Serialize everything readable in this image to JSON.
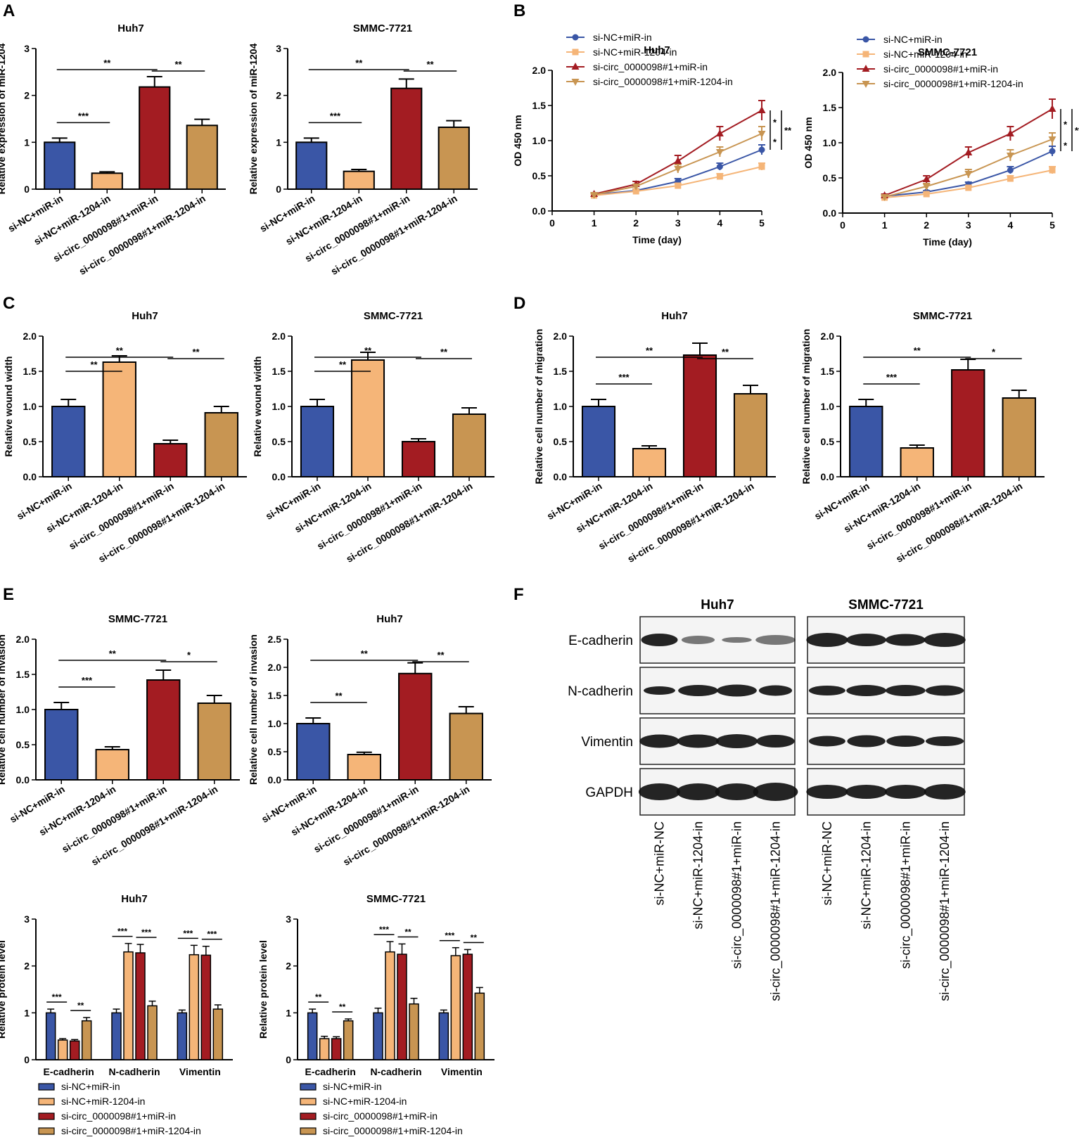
{
  "colors": {
    "blue": "#3a56a6",
    "peach": "#f5b578",
    "red": "#a31c22",
    "tan": "#c89552",
    "black": "#000000"
  },
  "panel_letters": [
    "A",
    "B",
    "C",
    "D",
    "E",
    "F"
  ],
  "chart_data": [
    {
      "panel": "A",
      "type": "bar",
      "title": "Huh7",
      "ylabel": "Relative expression of miR-1204",
      "ylim": [
        0,
        3
      ],
      "yticks": [
        0,
        1,
        2,
        3
      ],
      "categories": [
        "si-NC+miR-in",
        "si-NC+miR-1204-in",
        "si-circ_0000098#1+miR-in",
        "si-circ_0000098#1+miR-1204-in"
      ],
      "values": [
        1.0,
        0.34,
        2.18,
        1.36
      ],
      "errors": [
        0.09,
        0.03,
        0.22,
        0.13
      ],
      "significance": [
        {
          "from": 0,
          "to": 1,
          "label": "***"
        },
        {
          "from": 0,
          "to": 2,
          "label": "**"
        },
        {
          "from": 2,
          "to": 3,
          "label": "**"
        }
      ]
    },
    {
      "panel": "A",
      "type": "bar",
      "title": "SMMC-7721",
      "ylabel": "Relative expression of miR-1204",
      "ylim": [
        0,
        3
      ],
      "yticks": [
        0,
        1,
        2,
        3
      ],
      "categories": [
        "si-NC+miR-in",
        "si-NC+miR-1204-in",
        "si-circ_0000098#1+miR-in",
        "si-circ_0000098#1+miR-1204-in"
      ],
      "values": [
        1.0,
        0.38,
        2.15,
        1.32
      ],
      "errors": [
        0.09,
        0.04,
        0.2,
        0.14
      ],
      "significance": [
        {
          "from": 0,
          "to": 1,
          "label": "***"
        },
        {
          "from": 0,
          "to": 2,
          "label": "**"
        },
        {
          "from": 2,
          "to": 3,
          "label": "**"
        }
      ]
    },
    {
      "panel": "B",
      "type": "line",
      "title": "Huh7",
      "xlabel": "Time (day)",
      "ylabel": "OD 450 nm",
      "xlim": [
        0,
        5
      ],
      "ylim": [
        0,
        2.0
      ],
      "xticks": [
        0,
        1,
        2,
        3,
        4,
        5
      ],
      "yticks": [
        0.0,
        0.5,
        1.0,
        1.5,
        2.0
      ],
      "x": [
        1,
        2,
        3,
        4,
        5
      ],
      "series": [
        {
          "name": "si-NC+miR-in",
          "values": [
            0.23,
            0.29,
            0.42,
            0.63,
            0.87
          ],
          "errors": [
            0.02,
            0.02,
            0.04,
            0.05,
            0.07
          ]
        },
        {
          "name": "si-NC+miR-1204-in",
          "values": [
            0.22,
            0.28,
            0.36,
            0.49,
            0.63
          ],
          "errors": [
            0.02,
            0.02,
            0.03,
            0.04,
            0.05
          ]
        },
        {
          "name": "si-circ_0000098#1+miR-in",
          "values": [
            0.24,
            0.38,
            0.71,
            1.1,
            1.43
          ],
          "errors": [
            0.02,
            0.04,
            0.08,
            0.1,
            0.14
          ]
        },
        {
          "name": "si-circ_0000098#1+miR-1204-in",
          "values": [
            0.23,
            0.35,
            0.6,
            0.84,
            1.1
          ],
          "errors": [
            0.02,
            0.03,
            0.06,
            0.07,
            0.1
          ]
        }
      ],
      "significance": [
        "*",
        "*",
        "**"
      ]
    },
    {
      "panel": "B",
      "type": "line",
      "title": "SMMC-7721",
      "xlabel": "Time (day)",
      "ylabel": "OD 450 nm",
      "xlim": [
        0,
        5
      ],
      "ylim": [
        0,
        2.0
      ],
      "xticks": [
        0,
        1,
        2,
        3,
        4,
        5
      ],
      "yticks": [
        0.0,
        0.5,
        1.0,
        1.5,
        2.0
      ],
      "x": [
        1,
        2,
        3,
        4,
        5
      ],
      "series": [
        {
          "name": "si-NC+miR-in",
          "values": [
            0.24,
            0.3,
            0.41,
            0.61,
            0.88
          ],
          "errors": [
            0.02,
            0.02,
            0.03,
            0.05,
            0.07
          ]
        },
        {
          "name": "si-NC+miR-1204-in",
          "values": [
            0.22,
            0.27,
            0.36,
            0.49,
            0.61
          ],
          "errors": [
            0.02,
            0.02,
            0.03,
            0.04,
            0.05
          ]
        },
        {
          "name": "si-circ_0000098#1+miR-in",
          "values": [
            0.25,
            0.48,
            0.86,
            1.13,
            1.48
          ],
          "errors": [
            0.02,
            0.05,
            0.08,
            0.1,
            0.14
          ]
        },
        {
          "name": "si-circ_0000098#1+miR-1204-in",
          "values": [
            0.23,
            0.38,
            0.56,
            0.82,
            1.05
          ],
          "errors": [
            0.02,
            0.04,
            0.06,
            0.08,
            0.09
          ]
        }
      ],
      "significance": [
        "*",
        "*",
        "**"
      ]
    },
    {
      "panel": "C",
      "type": "bar",
      "title": "Huh7",
      "ylabel": "Relative wound width",
      "ylim": [
        0,
        2.0
      ],
      "yticks": [
        0.0,
        0.5,
        1.0,
        1.5,
        2.0
      ],
      "categories": [
        "si-NC+miR-in",
        "si-NC+miR-1204-in",
        "si-circ_0000098#1+miR-in",
        "si-circ_0000098#1+miR-1204-in"
      ],
      "values": [
        1.0,
        1.63,
        0.47,
        0.91
      ],
      "errors": [
        0.1,
        0.09,
        0.05,
        0.09
      ],
      "significance": [
        {
          "from": 0,
          "to": 1,
          "label": "**"
        },
        {
          "from": 0,
          "to": 2,
          "label": "**"
        },
        {
          "from": 2,
          "to": 3,
          "label": "**"
        }
      ]
    },
    {
      "panel": "C",
      "type": "bar",
      "title": "SMMC-7721",
      "ylabel": "Relative wound width",
      "ylim": [
        0,
        2.0
      ],
      "yticks": [
        0.0,
        0.5,
        1.0,
        1.5,
        2.0
      ],
      "categories": [
        "si-NC+miR-in",
        "si-NC+miR-1204-in",
        "si-circ_0000098#1+miR-in",
        "si-circ_0000098#1+miR-1204-in"
      ],
      "values": [
        1.0,
        1.66,
        0.5,
        0.89
      ],
      "errors": [
        0.1,
        0.11,
        0.04,
        0.09
      ],
      "significance": [
        {
          "from": 0,
          "to": 1,
          "label": "**"
        },
        {
          "from": 0,
          "to": 2,
          "label": "**"
        },
        {
          "from": 2,
          "to": 3,
          "label": "**"
        }
      ]
    },
    {
      "panel": "D",
      "type": "bar",
      "title": "Huh7",
      "ylabel": "Relative cell number of migration",
      "ylim": [
        0,
        2.0
      ],
      "yticks": [
        0.0,
        0.5,
        1.0,
        1.5,
        2.0
      ],
      "categories": [
        "si-NC+miR-in",
        "si-NC+miR-1204-in",
        "si-circ_0000098#1+miR-in",
        "si-circ_0000098#1+miR-1204-in"
      ],
      "values": [
        1.0,
        0.4,
        1.73,
        1.18
      ],
      "errors": [
        0.1,
        0.04,
        0.17,
        0.12
      ],
      "significance": [
        {
          "from": 0,
          "to": 1,
          "label": "***"
        },
        {
          "from": 0,
          "to": 2,
          "label": "**"
        },
        {
          "from": 2,
          "to": 3,
          "label": "**"
        }
      ]
    },
    {
      "panel": "D",
      "type": "bar",
      "title": "SMMC-7721",
      "ylabel": "Relative cell number of migration",
      "ylim": [
        0,
        2.0
      ],
      "yticks": [
        0.0,
        0.5,
        1.0,
        1.5,
        2.0
      ],
      "categories": [
        "si-NC+miR-in",
        "si-NC+miR-1204-in",
        "si-circ_0000098#1+miR-in",
        "si-circ_0000098#1+miR-1204-in"
      ],
      "values": [
        1.0,
        0.41,
        1.52,
        1.12
      ],
      "errors": [
        0.1,
        0.04,
        0.15,
        0.11
      ],
      "significance": [
        {
          "from": 0,
          "to": 1,
          "label": "***"
        },
        {
          "from": 0,
          "to": 2,
          "label": "**"
        },
        {
          "from": 2,
          "to": 3,
          "label": "*"
        }
      ]
    },
    {
      "panel": "E",
      "type": "bar",
      "title": "SMMC-7721",
      "ylabel": "Relative cell number of invasion",
      "ylim": [
        0,
        2.0
      ],
      "yticks": [
        0.0,
        0.5,
        1.0,
        1.5,
        2.0
      ],
      "categories": [
        "si-NC+miR-in",
        "si-NC+miR-1204-in",
        "si-circ_0000098#1+miR-in",
        "si-circ_0000098#1+miR-1204-in"
      ],
      "values": [
        1.0,
        0.43,
        1.42,
        1.09
      ],
      "errors": [
        0.1,
        0.04,
        0.14,
        0.11
      ],
      "significance": [
        {
          "from": 0,
          "to": 1,
          "label": "***"
        },
        {
          "from": 0,
          "to": 2,
          "label": "**"
        },
        {
          "from": 2,
          "to": 3,
          "label": "*"
        }
      ]
    },
    {
      "panel": "E",
      "type": "bar",
      "title": "Huh7",
      "ylabel": "Relative cell number of invasion",
      "ylim": [
        0,
        2.5
      ],
      "yticks": [
        0.0,
        0.5,
        1.0,
        1.5,
        2.0,
        2.5
      ],
      "categories": [
        "si-NC+miR-in",
        "si-NC+miR-1204-in",
        "si-circ_0000098#1+miR-in",
        "si-circ_0000098#1+miR-1204-in"
      ],
      "values": [
        1.0,
        0.45,
        1.89,
        1.18
      ],
      "errors": [
        0.1,
        0.04,
        0.19,
        0.12
      ],
      "significance": [
        {
          "from": 0,
          "to": 1,
          "label": "**"
        },
        {
          "from": 0,
          "to": 2,
          "label": "**"
        },
        {
          "from": 2,
          "to": 3,
          "label": "**"
        }
      ]
    },
    {
      "panel": "F",
      "type": "bar",
      "title": "Huh7",
      "ylabel": "Relative protein level",
      "ylim": [
        0,
        3
      ],
      "yticks": [
        0,
        1,
        2,
        3
      ],
      "categories": [
        "E-cadherin",
        "N-cadherin",
        "Vimentin"
      ],
      "series": [
        {
          "name": "si-NC+miR-in",
          "values": [
            1.0,
            1.0,
            1.0
          ],
          "errors": [
            0.08,
            0.08,
            0.06
          ]
        },
        {
          "name": "si-NC+miR-1204-in",
          "values": [
            0.42,
            2.3,
            2.24
          ],
          "errors": [
            0.03,
            0.18,
            0.2
          ]
        },
        {
          "name": "si-circ_0000098#1+miR-in",
          "values": [
            0.4,
            2.28,
            2.23
          ],
          "errors": [
            0.03,
            0.18,
            0.19
          ]
        },
        {
          "name": "si-circ_0000098#1+miR-1204-in",
          "values": [
            0.83,
            1.15,
            1.08
          ],
          "errors": [
            0.07,
            0.1,
            0.09
          ]
        }
      ],
      "significance": [
        "***",
        "**",
        "***",
        "***",
        "***",
        "***"
      ]
    },
    {
      "panel": "F",
      "type": "bar",
      "title": "SMMC-7721",
      "ylabel": "Relative protein level",
      "ylim": [
        0,
        3
      ],
      "yticks": [
        0,
        1,
        2,
        3
      ],
      "categories": [
        "E-cadherin",
        "N-cadherin",
        "Vimentin"
      ],
      "series": [
        {
          "name": "si-NC+miR-in",
          "values": [
            1.0,
            1.0,
            1.0
          ],
          "errors": [
            0.08,
            0.1,
            0.06
          ]
        },
        {
          "name": "si-NC+miR-1204-in",
          "values": [
            0.45,
            2.3,
            2.22
          ],
          "errors": [
            0.05,
            0.22,
            0.17
          ]
        },
        {
          "name": "si-circ_0000098#1+miR-in",
          "values": [
            0.45,
            2.25,
            2.25
          ],
          "errors": [
            0.04,
            0.22,
            0.1
          ]
        },
        {
          "name": "si-circ_0000098#1+miR-1204-in",
          "values": [
            0.83,
            1.19,
            1.42
          ],
          "errors": [
            0.04,
            0.12,
            0.12
          ]
        }
      ],
      "significance": [
        "**",
        "**",
        "***",
        "**",
        "***",
        "**"
      ]
    }
  ],
  "western_blot": {
    "titles": [
      "Huh7",
      "SMMC-7721"
    ],
    "proteins": [
      "E-cadherin",
      "N-cadherin",
      "Vimentin",
      "GAPDH"
    ],
    "lanes": [
      "si-NC+miR-NC",
      "si-NC+miR-1204-in",
      "si-circ_0000098#1+miR-in",
      "si-circ_0000098#1+miR-1204-in"
    ]
  }
}
